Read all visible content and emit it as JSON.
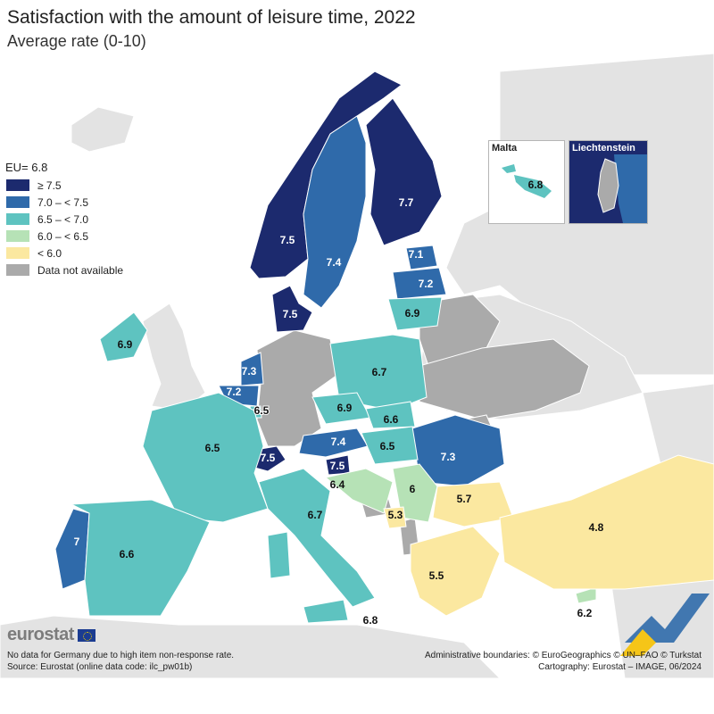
{
  "title": "Satisfaction with the amount of leisure time, 2022",
  "subtitle": "Average rate (0-10)",
  "legend": {
    "eu_label": "EU= 6.8",
    "classes": [
      {
        "label": "≥ 7.5",
        "color": "#1c2a6e"
      },
      {
        "label": "7.0 – < 7.5",
        "color": "#2f6aaa"
      },
      {
        "label": "6.5 – < 7.0",
        "color": "#5ec3c0"
      },
      {
        "label": "6.0 – < 6.5",
        "color": "#b6e2b6"
      },
      {
        "label": "< 6.0",
        "color": "#fbe8a0"
      },
      {
        "label": "Data not available",
        "color": "#aaaaaa"
      }
    ]
  },
  "countries": {
    "norway": "7.5",
    "sweden": "7.4",
    "finland": "7.7",
    "estonia": "7.1",
    "latvia": "7.2",
    "lithuania": "6.9",
    "denmark": "7.5",
    "ireland": "6.9",
    "netherlands": "7.3",
    "belgium": "7.2",
    "luxembourg": "6.5",
    "france": "6.5",
    "poland": "6.7",
    "czechia": "6.9",
    "slovakia": "6.6",
    "austria": "7.4",
    "switzerland": "7.5",
    "slovenia": "7.5",
    "hungary": "6.5",
    "romania": "7.3",
    "croatia": "6.4",
    "serbia": "6",
    "bulgaria": "5.7",
    "montenegro": "5.3",
    "italy": "6.7",
    "portugal": "7",
    "spain": "6.6",
    "greece": "5.5",
    "turkey": "4.8",
    "cyprus": "6.2",
    "malta_main": "6.8"
  },
  "insets": {
    "malta": {
      "title": "Malta",
      "value": "6.8"
    },
    "liechtenstein": {
      "title": "Liechtenstein"
    }
  },
  "footer": {
    "note": "No data for Germany due to high item non-response rate.",
    "source": "Source: Eurostat (online data code: ilc_pw01b)",
    "boundaries": "Administrative boundaries: © EuroGeographics © UN–FAO © Turkstat",
    "cartography": "Cartography: Eurostat – IMAGE, 06/2024"
  },
  "logo": {
    "text": "eurostat"
  }
}
